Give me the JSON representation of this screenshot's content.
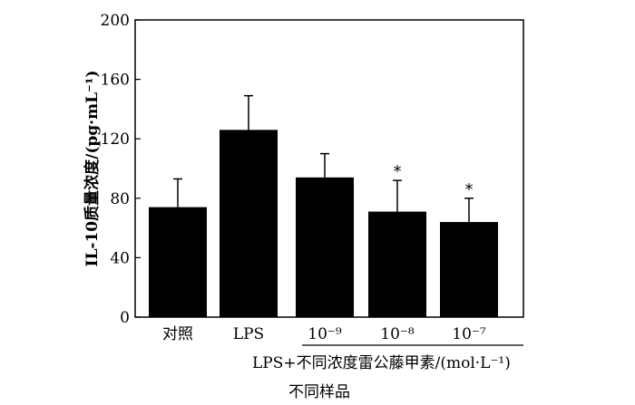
{
  "chart_data": {
    "type": "bar",
    "categories": [
      "对照",
      "LPS",
      "10⁻⁹",
      "10⁻⁸",
      "10⁻⁷"
    ],
    "values": [
      74,
      126,
      94,
      71,
      64
    ],
    "errors": [
      19,
      23,
      16,
      21,
      16
    ],
    "significance": [
      "",
      "",
      "",
      "*",
      "*"
    ],
    "ylim": [
      0,
      200
    ],
    "yticks": [
      "0",
      "40",
      "80",
      "120",
      "160",
      "200"
    ],
    "ylabel": "IL-10质量浓度/(pg·mL⁻¹)",
    "group_label": "LPS+不同浓度雷公藤甲素/(mol·L⁻¹)",
    "xlabel": "不同样品",
    "bar_color": "#000000"
  }
}
